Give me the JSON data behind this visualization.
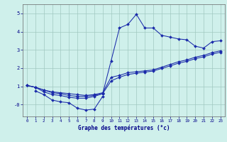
{
  "xlabel": "Graphe des températures (°c)",
  "bg_color": "#cff0eb",
  "line_color": "#1a2aaa",
  "xlim": [
    -0.5,
    23.5
  ],
  "ylim": [
    -0.65,
    5.5
  ],
  "xticks": [
    0,
    1,
    2,
    3,
    4,
    5,
    6,
    7,
    8,
    9,
    10,
    11,
    12,
    13,
    14,
    15,
    16,
    17,
    18,
    19,
    20,
    21,
    22,
    23
  ],
  "yticks": [
    0,
    1,
    2,
    3,
    4,
    5
  ],
  "ytick_labels": [
    "-0",
    "1",
    "2",
    "3",
    "4",
    "5"
  ],
  "grid_color": "#a0c8c0",
  "series1_x": [
    0,
    1,
    2,
    3,
    4,
    5,
    6,
    7,
    8,
    9,
    10,
    11,
    12,
    13,
    14,
    15,
    16,
    17,
    18,
    19,
    20,
    21,
    22,
    23
  ],
  "series1_y": [
    1.05,
    0.95,
    0.7,
    0.55,
    0.5,
    0.4,
    0.35,
    0.35,
    0.45,
    0.6,
    2.4,
    4.2,
    4.4,
    4.95,
    4.2,
    4.2,
    3.8,
    3.7,
    3.6,
    3.55,
    3.2,
    3.1,
    3.45,
    3.5
  ],
  "series2_x": [
    0,
    1,
    2,
    3,
    4,
    5,
    6,
    7,
    8,
    9,
    10,
    11,
    12,
    13,
    14,
    15,
    16,
    17,
    18,
    19,
    20,
    21,
    22,
    23
  ],
  "series2_y": [
    1.05,
    0.95,
    0.8,
    0.7,
    0.65,
    0.6,
    0.55,
    0.5,
    0.55,
    0.65,
    1.5,
    1.6,
    1.75,
    1.8,
    1.85,
    1.9,
    2.05,
    2.2,
    2.35,
    2.45,
    2.6,
    2.7,
    2.85,
    2.95
  ],
  "series3_x": [
    0,
    1,
    2,
    3,
    4,
    5,
    6,
    7,
    8,
    9,
    10,
    11,
    12,
    13,
    14,
    15,
    16,
    17,
    18,
    19,
    20,
    21,
    22,
    23
  ],
  "series3_y": [
    1.05,
    0.95,
    0.8,
    0.65,
    0.6,
    0.5,
    0.45,
    0.45,
    0.5,
    0.6,
    1.3,
    1.5,
    1.65,
    1.72,
    1.78,
    1.84,
    1.98,
    2.12,
    2.27,
    2.37,
    2.52,
    2.62,
    2.77,
    2.87
  ],
  "series4_x": [
    1,
    2,
    3,
    4,
    5,
    6,
    7,
    8,
    9
  ],
  "series4_y": [
    0.75,
    0.55,
    0.25,
    0.15,
    0.1,
    -0.2,
    -0.3,
    -0.25,
    0.45
  ]
}
